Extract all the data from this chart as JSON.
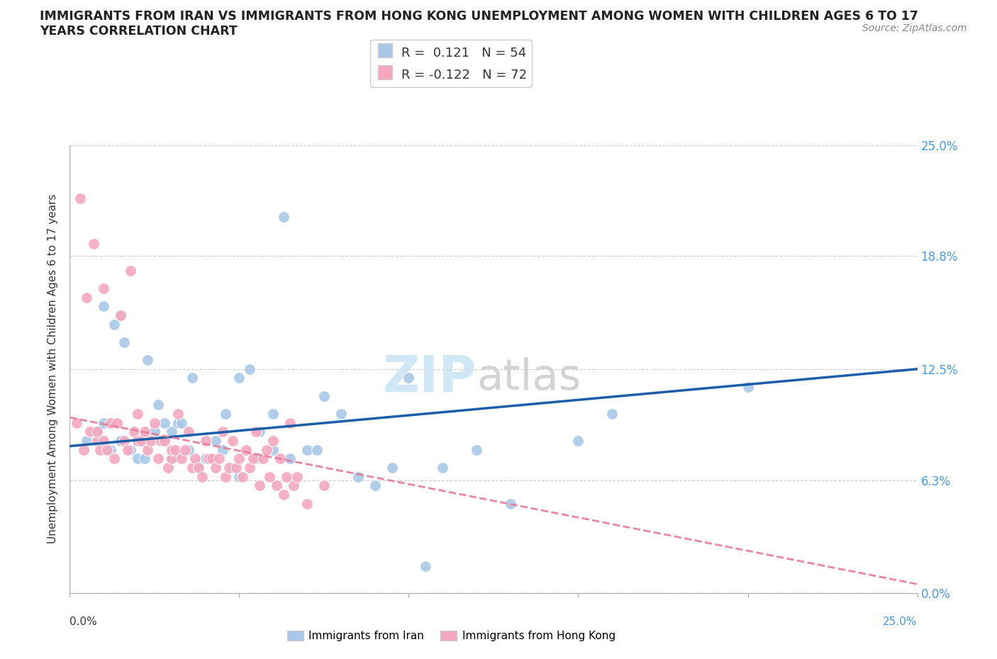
{
  "title": "IMMIGRANTS FROM IRAN VS IMMIGRANTS FROM HONG KONG UNEMPLOYMENT AMONG WOMEN WITH CHILDREN AGES 6 TO 17\nYEARS CORRELATION CHART",
  "source": "Source: ZipAtlas.com",
  "ylabel": "Unemployment Among Women with Children Ages 6 to 17 years",
  "ytick_values": [
    0.0,
    6.3,
    12.5,
    18.8,
    25.0
  ],
  "xlim": [
    0.0,
    25.0
  ],
  "ylim": [
    0.0,
    25.0
  ],
  "iran_R": 0.121,
  "iran_N": 54,
  "hk_R": -0.122,
  "hk_N": 72,
  "iran_color": "#a8c8e8",
  "hk_color": "#f4a8c0",
  "iran_line_color": "#1a5fa8",
  "hk_line_color": "#e87898",
  "iran_scatter_x": [
    0.5,
    0.8,
    1.0,
    1.2,
    1.5,
    1.5,
    1.8,
    2.0,
    2.0,
    2.2,
    2.5,
    2.8,
    3.0,
    3.0,
    3.2,
    3.5,
    3.8,
    4.0,
    4.2,
    4.5,
    4.8,
    5.0,
    5.0,
    5.5,
    6.0,
    6.0,
    6.5,
    7.0,
    7.5,
    8.0,
    9.0,
    9.5,
    10.0,
    11.0,
    12.0,
    13.0,
    15.0,
    16.0,
    20.0,
    1.0,
    1.3,
    1.6,
    2.3,
    2.6,
    3.3,
    3.6,
    4.3,
    4.6,
    5.3,
    5.6,
    6.3,
    7.3,
    8.5,
    10.5
  ],
  "iran_scatter_y": [
    8.5,
    9.0,
    9.5,
    8.0,
    8.5,
    15.5,
    8.0,
    8.5,
    7.5,
    7.5,
    9.0,
    9.5,
    7.5,
    9.0,
    9.5,
    8.0,
    7.0,
    7.5,
    7.5,
    8.0,
    7.0,
    6.5,
    12.0,
    7.5,
    8.0,
    10.0,
    7.5,
    8.0,
    11.0,
    10.0,
    6.0,
    7.0,
    12.0,
    7.0,
    8.0,
    5.0,
    8.5,
    10.0,
    11.5,
    16.0,
    15.0,
    14.0,
    13.0,
    10.5,
    9.5,
    12.0,
    8.5,
    10.0,
    12.5,
    9.0,
    21.0,
    8.0,
    6.5,
    1.5
  ],
  "hk_scatter_x": [
    0.2,
    0.3,
    0.4,
    0.5,
    0.6,
    0.7,
    0.8,
    0.8,
    0.9,
    1.0,
    1.0,
    1.1,
    1.2,
    1.3,
    1.4,
    1.5,
    1.6,
    1.7,
    1.8,
    1.9,
    2.0,
    2.0,
    2.1,
    2.2,
    2.3,
    2.4,
    2.5,
    2.6,
    2.7,
    2.8,
    2.9,
    3.0,
    3.0,
    3.1,
    3.2,
    3.3,
    3.4,
    3.5,
    3.6,
    3.7,
    3.8,
    3.9,
    4.0,
    4.1,
    4.2,
    4.3,
    4.4,
    4.5,
    4.6,
    4.7,
    4.8,
    4.9,
    5.0,
    5.1,
    5.2,
    5.3,
    5.4,
    5.5,
    5.6,
    5.7,
    5.8,
    5.9,
    6.0,
    6.1,
    6.2,
    6.3,
    6.4,
    6.5,
    6.6,
    6.7,
    7.0,
    7.5
  ],
  "hk_scatter_y": [
    9.5,
    22.0,
    8.0,
    16.5,
    9.0,
    19.5,
    8.5,
    9.0,
    8.0,
    17.0,
    8.5,
    8.0,
    9.5,
    7.5,
    9.5,
    15.5,
    8.5,
    8.0,
    18.0,
    9.0,
    10.0,
    8.5,
    8.5,
    9.0,
    8.0,
    8.5,
    9.5,
    7.5,
    8.5,
    8.5,
    7.0,
    7.5,
    8.0,
    8.0,
    10.0,
    7.5,
    8.0,
    9.0,
    7.0,
    7.5,
    7.0,
    6.5,
    8.5,
    7.5,
    7.5,
    7.0,
    7.5,
    9.0,
    6.5,
    7.0,
    8.5,
    7.0,
    7.5,
    6.5,
    8.0,
    7.0,
    7.5,
    9.0,
    6.0,
    7.5,
    8.0,
    6.5,
    8.5,
    6.0,
    7.5,
    5.5,
    6.5,
    9.5,
    6.0,
    6.5,
    5.0,
    6.0
  ],
  "iran_line_x": [
    0.0,
    25.0
  ],
  "iran_line_y_start": 8.2,
  "iran_line_y_end": 12.5,
  "hk_line_x": [
    0.0,
    25.0
  ],
  "hk_line_y_start": 9.8,
  "hk_line_y_end": 0.5
}
